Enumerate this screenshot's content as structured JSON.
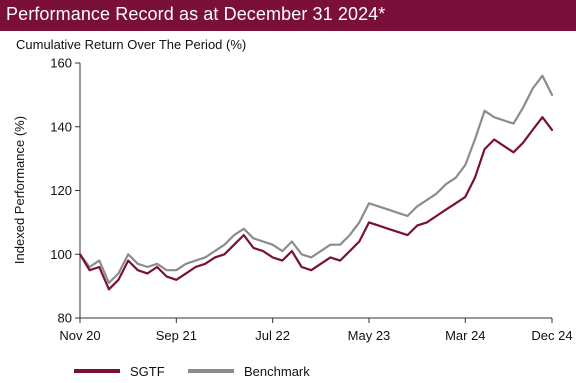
{
  "header": {
    "title": "Performance Record as at December 31 2024*"
  },
  "colors": {
    "header_bg": "#7a0f3a",
    "sgtf": "#7a0f3a",
    "benchmark": "#8c8c8c",
    "axis": "#333333"
  },
  "chart_data": {
    "type": "line",
    "title": "Cumulative Return Over The Period (%)",
    "ylabel": "Indexed Performance (%)",
    "xlabel": "",
    "ylim": [
      80,
      160
    ],
    "yticks": [
      80,
      100,
      120,
      140,
      160
    ],
    "xlim": [
      0,
      49
    ],
    "xticks": [
      {
        "label": "Nov 20",
        "x": 0
      },
      {
        "label": "Sep 21",
        "x": 10
      },
      {
        "label": "Jul 22",
        "x": 20
      },
      {
        "label": "May 23",
        "x": 30
      },
      {
        "label": "Mar 24",
        "x": 40
      },
      {
        "label": "Dec 24",
        "x": 49
      }
    ],
    "x": [
      0,
      1,
      2,
      3,
      4,
      5,
      6,
      7,
      8,
      9,
      10,
      11,
      12,
      13,
      14,
      15,
      16,
      17,
      18,
      19,
      20,
      21,
      22,
      23,
      24,
      25,
      26,
      27,
      28,
      29,
      30,
      31,
      32,
      33,
      34,
      35,
      36,
      37,
      38,
      39,
      40,
      41,
      42,
      43,
      44,
      45,
      46,
      47,
      48,
      49
    ],
    "grid": false,
    "legend_position": "bottom",
    "series": [
      {
        "name": "SGTF",
        "values": [
          100,
          95,
          96,
          89,
          92,
          98,
          95,
          94,
          96,
          93,
          92,
          94,
          96,
          97,
          99,
          100,
          103,
          106,
          102,
          101,
          99,
          98,
          101,
          96,
          95,
          97,
          99,
          98,
          101,
          104,
          110,
          109,
          108,
          107,
          106,
          109,
          110,
          112,
          114,
          116,
          118,
          124,
          133,
          136,
          134,
          132,
          135,
          139,
          143,
          139
        ]
      },
      {
        "name": "Benchmark",
        "values": [
          100,
          96,
          98,
          91,
          94,
          100,
          97,
          96,
          97,
          95,
          95,
          97,
          98,
          99,
          101,
          103,
          106,
          108,
          105,
          104,
          103,
          101,
          104,
          100,
          99,
          101,
          103,
          103,
          106,
          110,
          116,
          115,
          114,
          113,
          112,
          115,
          117,
          119,
          122,
          124,
          128,
          136,
          145,
          143,
          142,
          141,
          146,
          152,
          156,
          150
        ]
      }
    ]
  }
}
